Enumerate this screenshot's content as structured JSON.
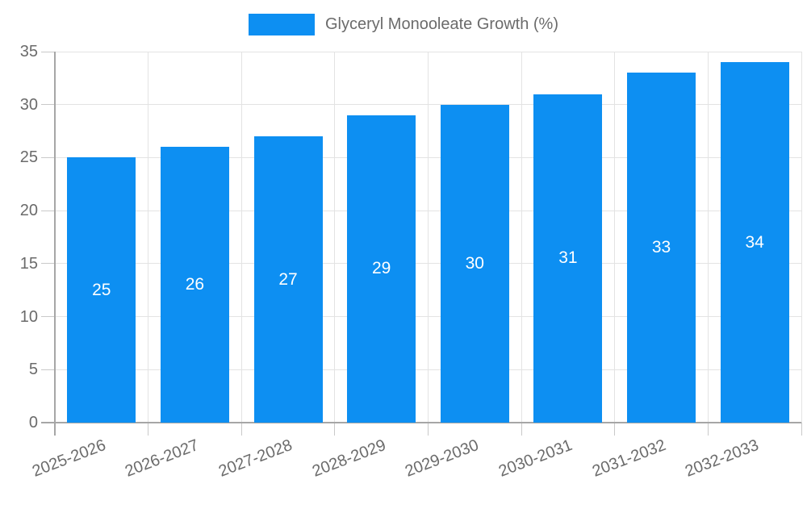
{
  "legend": {
    "label": "Glyceryl Monooleate Growth (%)",
    "position": "top"
  },
  "chart_data": {
    "type": "bar",
    "title": "",
    "xlabel": "",
    "ylabel": "",
    "categories": [
      "2025-2026",
      "2026-2027",
      "2027-2028",
      "2028-2029",
      "2029-2030",
      "2030-2031",
      "2031-2032",
      "2032-2033"
    ],
    "series": [
      {
        "name": "Glyceryl Monooleate Growth (%)",
        "values": [
          25,
          26,
          27,
          29,
          30,
          31,
          33,
          34
        ]
      }
    ],
    "value_labels_shown": true,
    "ylim": [
      0,
      35
    ],
    "yticks": [
      0,
      5,
      10,
      15,
      20,
      25,
      30,
      35
    ],
    "grid": true,
    "legend_position": "top",
    "x_label_rotation_deg": -21,
    "colors": {
      "bar": "#0d8ff2",
      "value_label": "#ffffff",
      "axis_text": "#6b6b6b",
      "grid_line": "#e3e3e3",
      "tick_line": "#c9c9c9",
      "axis_line": "#a6a6a6"
    }
  }
}
